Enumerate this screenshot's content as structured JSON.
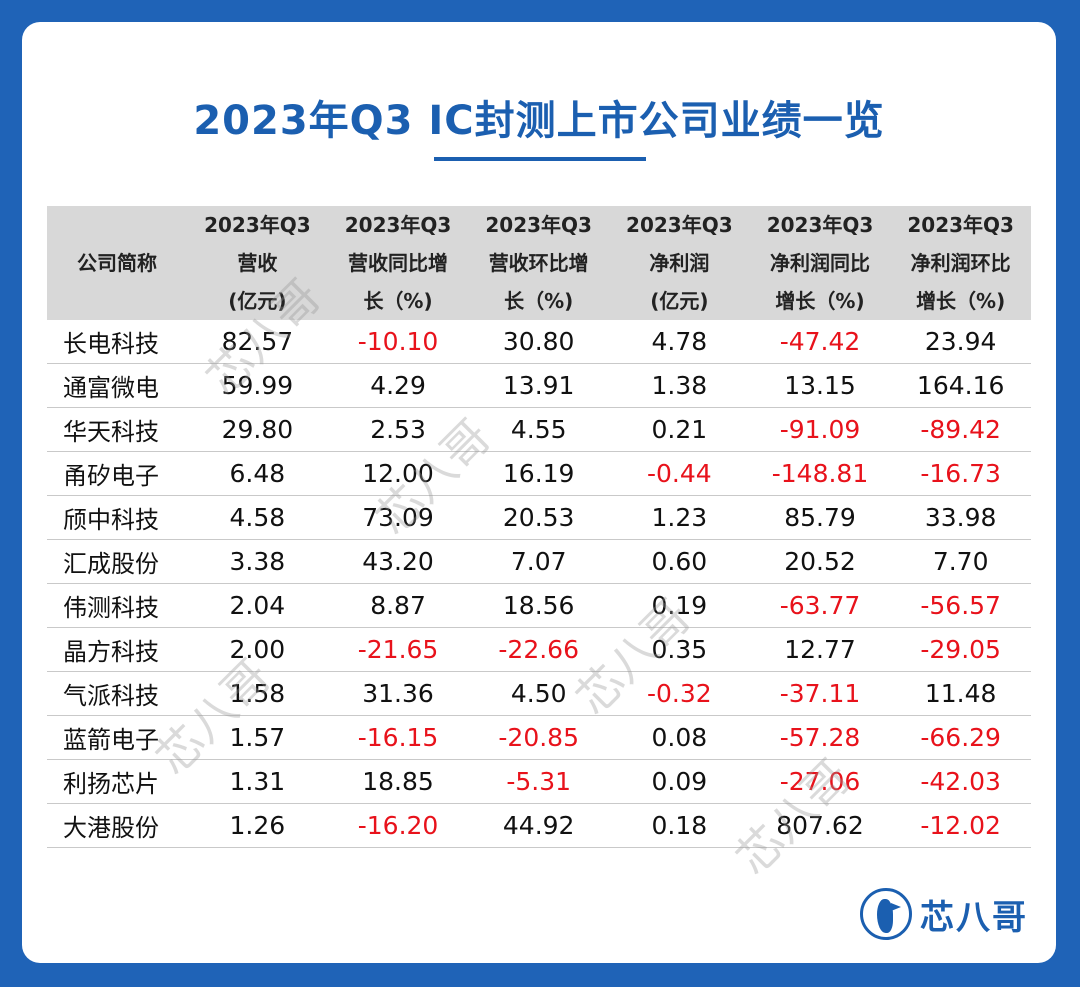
{
  "title": "2023年Q3 IC封测上市公司业绩一览",
  "accent_color": "#1b5fb0",
  "negative_color": "#e8121b",
  "table": {
    "headers": [
      [
        "公司简称"
      ],
      [
        "2023年Q3",
        "营收",
        "(亿元)"
      ],
      [
        "2023年Q3",
        "营收同比增",
        "长（%)"
      ],
      [
        "2023年Q3",
        "营收环比增",
        "长（%)"
      ],
      [
        "2023年Q3",
        "净利润",
        "(亿元)"
      ],
      [
        "2023年Q3",
        "净利润同比",
        "增长（%)"
      ],
      [
        "2023年Q3",
        "净利润环比",
        "增长（%)"
      ]
    ],
    "rows": [
      [
        "长电科技",
        "82.57",
        "-10.10",
        "30.80",
        "4.78",
        "-47.42",
        "23.94"
      ],
      [
        "通富微电",
        "59.99",
        "4.29",
        "13.91",
        "1.38",
        "13.15",
        "164.16"
      ],
      [
        "华天科技",
        "29.80",
        "2.53",
        "4.55",
        "0.21",
        "-91.09",
        "-89.42"
      ],
      [
        "甬矽电子",
        "6.48",
        "12.00",
        "16.19",
        "-0.44",
        "-148.81",
        "-16.73"
      ],
      [
        "颀中科技",
        "4.58",
        "73.09",
        "20.53",
        "1.23",
        "85.79",
        "33.98"
      ],
      [
        "汇成股份",
        "3.38",
        "43.20",
        "7.07",
        "0.60",
        "20.52",
        "7.70"
      ],
      [
        "伟测科技",
        "2.04",
        "8.87",
        "18.56",
        "0.19",
        "-63.77",
        "-56.57"
      ],
      [
        "晶方科技",
        "2.00",
        "-21.65",
        "-22.66",
        "0.35",
        "12.77",
        "-29.05"
      ],
      [
        "气派科技",
        "1.58",
        "31.36",
        "4.50",
        "-0.32",
        "-37.11",
        "11.48"
      ],
      [
        "蓝箭电子",
        "1.57",
        "-16.15",
        "-20.85",
        "0.08",
        "-57.28",
        "-66.29"
      ],
      [
        "利扬芯片",
        "1.31",
        "18.85",
        "-5.31",
        "0.09",
        "-27.06",
        "-42.03"
      ],
      [
        "大港股份",
        "1.26",
        "-16.20",
        "44.92",
        "0.18",
        "807.62",
        "-12.02"
      ]
    ]
  },
  "watermark_text": "芯八哥",
  "logo": {
    "icon": "bird-logo-icon",
    "text": "芯八哥"
  }
}
